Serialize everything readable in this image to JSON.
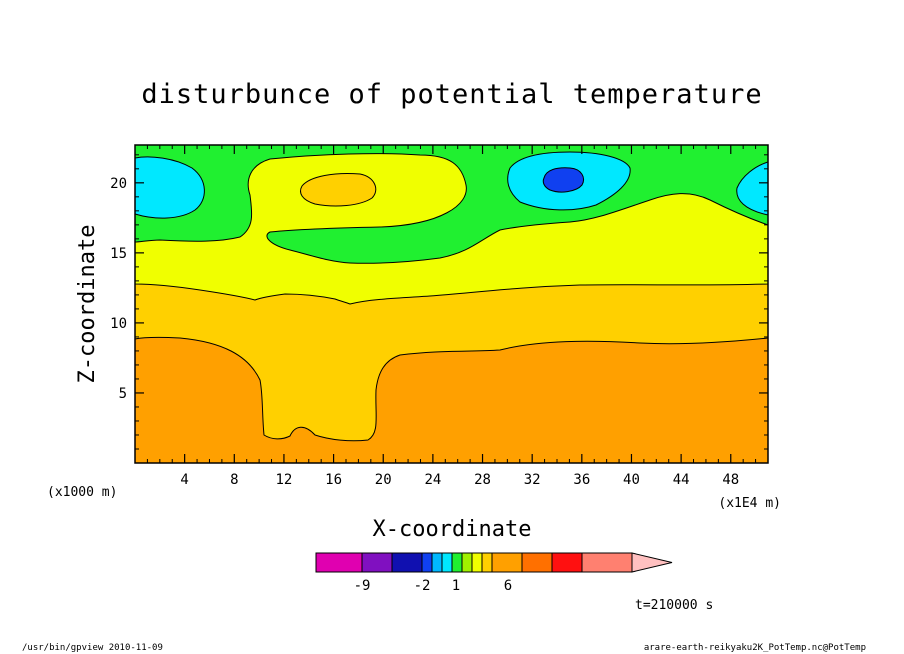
{
  "chart_data": {
    "type": "contour",
    "title": "disturbunce of potential temperature",
    "xlabel": "X-coordinate",
    "ylabel": "Z-coordinate",
    "x_unit_left": "(x1000 m)",
    "x_unit_right": "(x1E4 m)",
    "x_ticks": [
      "4",
      "8",
      "12",
      "16",
      "20",
      "24",
      "28",
      "32",
      "36",
      "40",
      "44",
      "48"
    ],
    "y_ticks": [
      "5",
      "10",
      "15",
      "20"
    ],
    "xlim": [
      0,
      51
    ],
    "ylim": [
      0,
      22.7
    ],
    "time_label": "t=210000 s",
    "colorbar": {
      "tick_labels": [
        "-9",
        "-2",
        "1",
        "6"
      ],
      "colors": [
        "#e000b0",
        "#8010c0",
        "#1010b0",
        "#1040f0",
        "#00b8ff",
        "#00e8ff",
        "#20f030",
        "#a0f000",
        "#f0ff00",
        "#ffd000",
        "#ffa000",
        "#ff7000",
        "#ff1010",
        "#ff8070",
        "#ffc0c0"
      ]
    },
    "regions": [
      {
        "level": "orange",
        "color": "#ffa000"
      },
      {
        "level": "gold",
        "color": "#ffd000"
      },
      {
        "level": "yellow",
        "color": "#f0ff00"
      },
      {
        "level": "green",
        "color": "#20f030"
      },
      {
        "level": "cyan",
        "color": "#00e8ff"
      },
      {
        "level": "blue",
        "color": "#1040f0"
      }
    ]
  },
  "footer": {
    "left": "/usr/bin/gpview  2010-11-09",
    "right": "arare-earth-reikyaku2K_PotTemp.nc@PotTemp"
  }
}
